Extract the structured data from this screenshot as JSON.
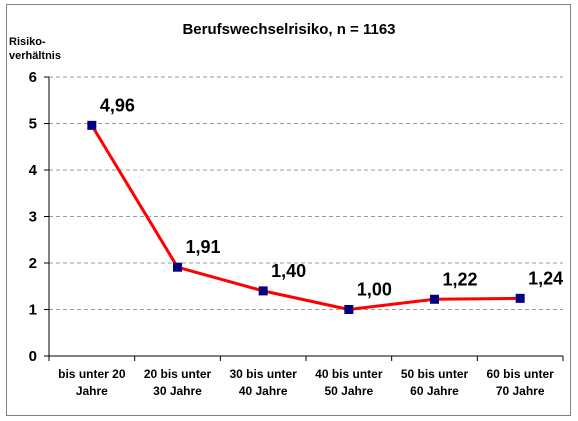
{
  "chart_data": {
    "type": "line",
    "title": "Berufswechselrisiko, n = 1163",
    "ylabel": [
      "Risiko-",
      "verhältnis"
    ],
    "xlabel": "",
    "ylim": [
      0,
      6
    ],
    "yticks": [
      "0",
      "1",
      "2",
      "3",
      "4",
      "5",
      "6"
    ],
    "grid": true,
    "categories": [
      [
        "bis unter 20",
        "Jahre"
      ],
      [
        "20 bis unter",
        "30 Jahre"
      ],
      [
        "30 bis unter",
        "40 Jahre"
      ],
      [
        "40 bis unter",
        "50 Jahre"
      ],
      [
        "50 bis unter",
        "60 Jahre"
      ],
      [
        "60 bis unter",
        "70 Jahre"
      ]
    ],
    "series": [
      {
        "values": [
          4.96,
          1.91,
          1.4,
          1.0,
          1.22,
          1.24
        ],
        "labels": [
          "4,96",
          "1,91",
          "1,40",
          "1,00",
          "1,22",
          "1,24"
        ],
        "line_color": "#ff0000",
        "marker_color": "#000080"
      }
    ]
  }
}
